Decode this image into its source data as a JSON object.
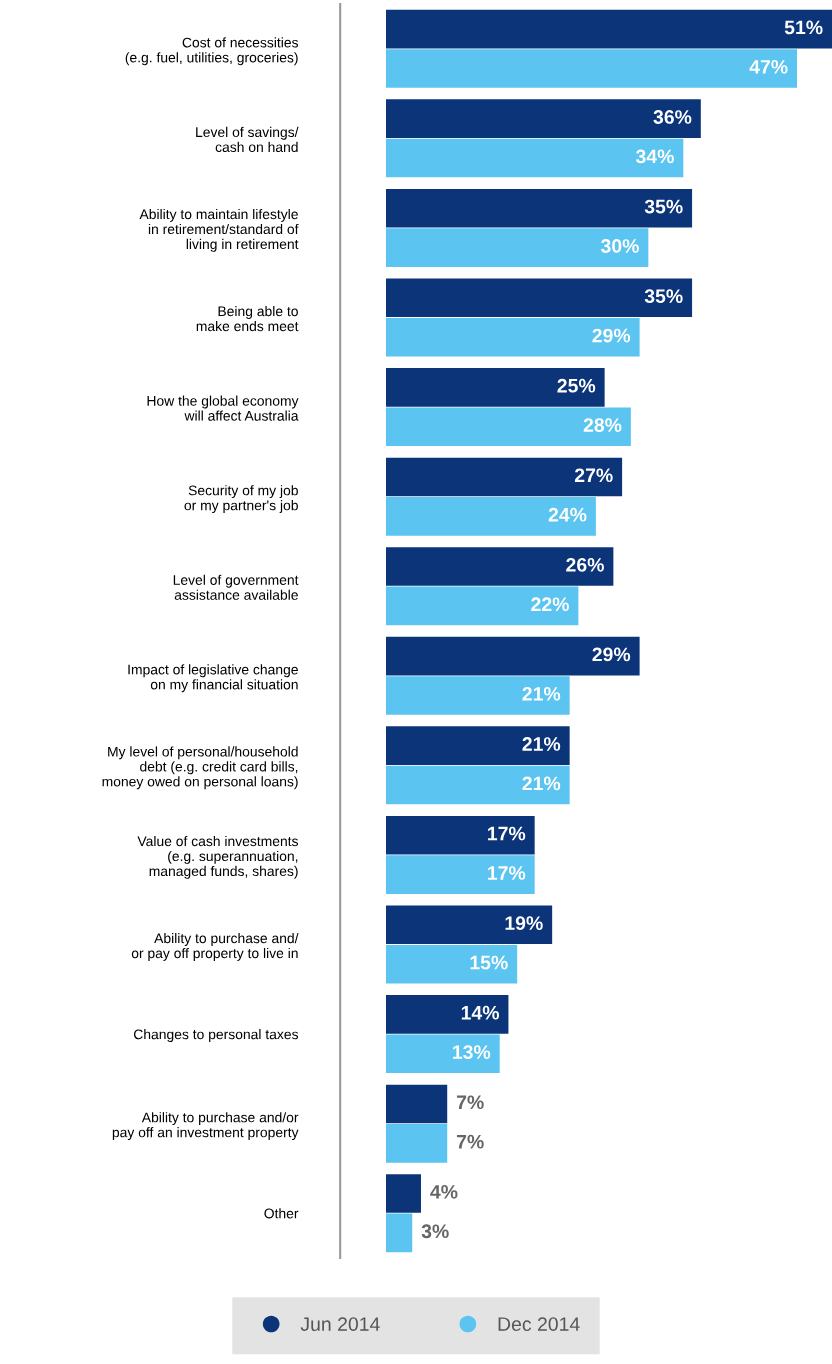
{
  "chart_data": {
    "type": "bar",
    "orientation": "horizontal",
    "categories": [
      "Cost of necessities\n(e.g. fuel, utilities, groceries)",
      "Level of savings/\ncash on hand",
      "Ability to maintain lifestyle\nin retirement/standard of\nliving in retirement",
      "Being able to\nmake ends meet",
      "How the global economy\nwill affect Australia",
      "Security of my job\nor my partner's job",
      "Level of government\nassistance available",
      "Impact of legislative change\non my financial situation",
      "My level of personal/household\ndebt (e.g. credit card bills,\nmoney owed on personal loans)",
      "Value of cash investments\n(e.g. superannuation,\nmanaged funds, shares)",
      "Ability to purchase and/\nor pay off property to live in",
      "Changes to personal taxes",
      "Ability to purchase and/or\npay off an investment property",
      "Other"
    ],
    "series": [
      {
        "name": "Jun 2014",
        "color": "#0b3479",
        "values": [
          51,
          36,
          35,
          35,
          25,
          27,
          26,
          29,
          21,
          17,
          19,
          14,
          7,
          4
        ],
        "value_labels": [
          "51%",
          "36%",
          "35%",
          "35%",
          "25%",
          "27%",
          "26%",
          "29%",
          "21%",
          "17%",
          "19%",
          "14%",
          "7%",
          "4%"
        ]
      },
      {
        "name": "Dec 2014",
        "color": "#5bc4f1",
        "values": [
          47,
          34,
          30,
          29,
          28,
          24,
          22,
          21,
          21,
          17,
          15,
          13,
          7,
          3
        ],
        "value_labels": [
          "47%",
          "34%",
          "30%",
          "29%",
          "28%",
          "24%",
          "22%",
          "21%",
          "21%",
          "17%",
          "15%",
          "13%",
          "7%",
          "3%"
        ]
      }
    ],
    "legend": "bottom",
    "marker": "circle"
  }
}
